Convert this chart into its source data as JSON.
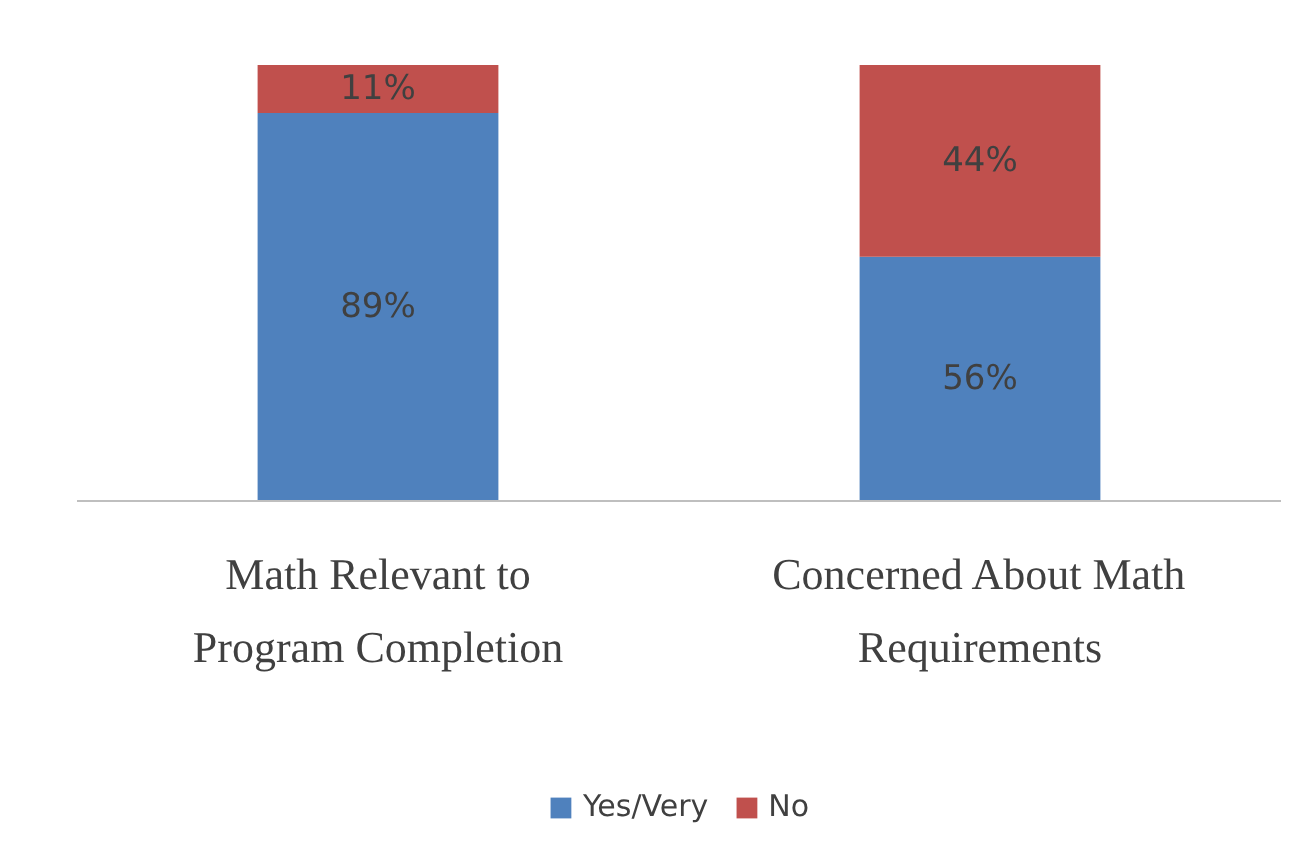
{
  "chart_data": {
    "type": "bar",
    "stacked": true,
    "data_labels": true,
    "legend": "bottom",
    "ylim": [
      0,
      100
    ],
    "categories": [
      "Math Relevant to Program Completion",
      "Concerned About Math Requirements"
    ],
    "series": [
      {
        "name": "Yes/Very",
        "color": "#4f81bd",
        "values": [
          89,
          56
        ],
        "value_labels": [
          "89%",
          "56%"
        ]
      },
      {
        "name": "No",
        "color": "#c0504d",
        "values": [
          11,
          44
        ],
        "value_labels": [
          "11%",
          "44%"
        ]
      }
    ]
  }
}
